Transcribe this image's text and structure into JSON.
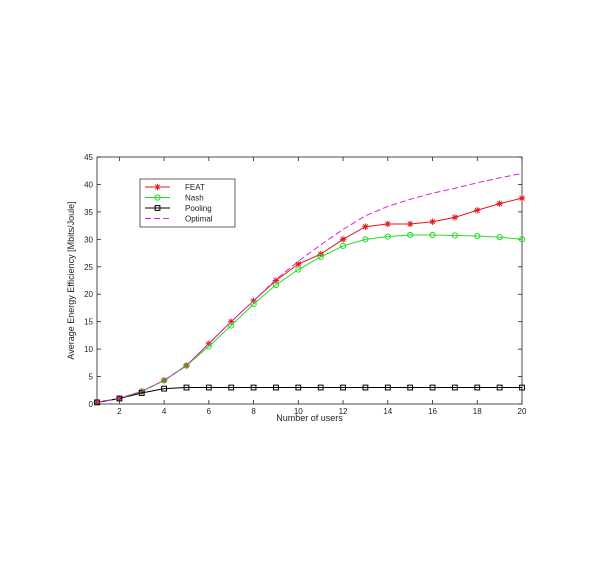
{
  "chart_data": {
    "type": "line",
    "xlabel": "Number of users",
    "ylabel": "Average Energy Efficiency [Mbits/Joule]",
    "xlim": [
      1,
      20
    ],
    "ylim": [
      0,
      45
    ],
    "xticks": [
      2,
      4,
      6,
      8,
      10,
      12,
      14,
      16,
      18,
      20
    ],
    "yticks": [
      0,
      5,
      10,
      15,
      20,
      25,
      30,
      35,
      40,
      45
    ],
    "grid": false,
    "legend_position": "top-left",
    "x": [
      1,
      2,
      3,
      4,
      5,
      6,
      7,
      8,
      9,
      10,
      11,
      12,
      13,
      14,
      15,
      16,
      17,
      18,
      19,
      20
    ],
    "series": [
      {
        "name": "FEAT",
        "color": "#e8141a",
        "marker": "asterisk",
        "dash": "solid",
        "values": [
          0.3,
          1.0,
          2.3,
          4.3,
          7.0,
          11.0,
          15.0,
          18.8,
          22.5,
          25.5,
          27.3,
          30.0,
          32.3,
          32.8,
          32.8,
          33.2,
          34.0,
          35.3,
          36.5,
          37.5
        ]
      },
      {
        "name": "Nash",
        "color": "#22dd22",
        "marker": "circle",
        "dash": "solid",
        "values": [
          0.3,
          1.0,
          2.3,
          4.3,
          7.0,
          10.5,
          14.3,
          18.2,
          21.7,
          24.5,
          26.8,
          28.8,
          30.0,
          30.5,
          30.8,
          30.8,
          30.7,
          30.6,
          30.4,
          30.0
        ]
      },
      {
        "name": "Pooling",
        "color": "#000000",
        "marker": "square",
        "dash": "solid",
        "values": [
          0.3,
          1.0,
          2.0,
          2.8,
          3.0,
          3.0,
          3.0,
          3.0,
          3.0,
          3.0,
          3.0,
          3.0,
          3.0,
          3.0,
          3.0,
          3.0,
          3.0,
          3.0,
          3.0,
          3.0
        ]
      },
      {
        "name": "Optimal",
        "color": "#e020e0",
        "marker": "none",
        "dash": "dashed",
        "values": [
          0.3,
          1.0,
          2.3,
          4.3,
          7.0,
          11.0,
          15.0,
          18.8,
          22.7,
          26.0,
          29.0,
          31.8,
          34.3,
          36.0,
          37.3,
          38.4,
          39.3,
          40.3,
          41.2,
          42.0
        ]
      }
    ]
  }
}
